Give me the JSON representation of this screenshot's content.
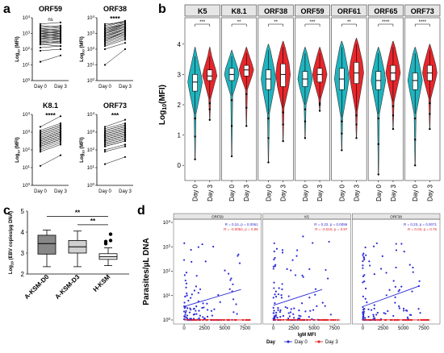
{
  "chart_data": [
    {
      "panel": "a",
      "type": "scatter",
      "style": "paired before-after",
      "ylabel": "Log10 (MFI)",
      "y_ticks": [
        "10^0",
        "10^1",
        "10^2",
        "10^3",
        "10^4"
      ],
      "categories": [
        "Day 0",
        "Day 3"
      ],
      "subplots": [
        {
          "title": "ORF59",
          "significance": "ns",
          "day0": [
            2.1,
            2.3,
            2.3,
            2.4,
            2.5,
            2.5,
            2.6,
            2.7,
            2.7,
            2.8,
            2.8,
            2.9,
            2.9,
            3.0,
            3.0,
            3.1,
            3.1,
            3.2,
            3.2,
            3.3,
            3.4,
            3.5,
            1.9,
            1.2,
            2.4,
            2.6,
            2.8,
            3.0,
            3.3,
            3.6
          ],
          "day3": [
            2.2,
            2.4,
            2.2,
            2.5,
            2.6,
            2.4,
            2.7,
            2.6,
            2.8,
            2.9,
            2.7,
            3.0,
            2.8,
            3.1,
            2.9,
            3.0,
            3.2,
            3.1,
            3.3,
            3.2,
            3.5,
            3.4,
            2.0,
            1.6,
            2.5,
            2.7,
            2.9,
            3.1,
            3.4,
            3.7
          ]
        },
        {
          "title": "ORF38",
          "significance": "****",
          "day0": [
            2.2,
            2.4,
            2.5,
            2.6,
            2.6,
            2.7,
            2.8,
            2.8,
            2.9,
            3.0,
            3.0,
            3.1,
            3.1,
            3.2,
            3.3,
            3.4,
            2.3,
            2.5,
            2.7,
            2.9,
            3.0,
            3.2,
            3.5,
            1.0,
            2.0,
            2.6,
            2.8,
            3.0,
            3.3,
            3.6
          ],
          "day3": [
            2.6,
            2.8,
            2.9,
            3.0,
            3.1,
            3.1,
            3.2,
            3.3,
            3.3,
            3.4,
            3.5,
            3.5,
            3.6,
            3.6,
            3.7,
            3.8,
            2.7,
            2.9,
            3.1,
            3.3,
            3.4,
            3.6,
            3.8,
            2.0,
            2.4,
            3.0,
            3.2,
            3.4,
            3.6,
            3.7
          ]
        },
        {
          "title": "K8.1",
          "significance": "****",
          "day0": [
            2.0,
            2.1,
            2.2,
            2.3,
            2.3,
            2.4,
            2.5,
            2.5,
            2.6,
            2.6,
            2.7,
            2.8,
            2.9,
            3.0,
            2.2,
            2.4,
            2.6,
            2.8,
            3.1,
            3.3,
            1.1,
            1.9,
            2.3,
            2.5,
            2.7,
            2.9,
            3.0,
            2.4,
            2.6,
            2.2
          ],
          "day3": [
            2.4,
            2.5,
            2.6,
            2.7,
            2.7,
            2.8,
            2.9,
            2.9,
            3.0,
            3.0,
            3.1,
            3.2,
            3.3,
            3.4,
            2.6,
            2.8,
            3.0,
            3.2,
            3.5,
            3.9,
            1.7,
            2.3,
            2.7,
            2.9,
            3.1,
            3.3,
            3.4,
            2.8,
            3.0,
            2.6
          ]
        },
        {
          "title": "ORF73",
          "significance": "***",
          "day0": [
            2.0,
            2.2,
            2.3,
            2.4,
            2.5,
            2.5,
            2.6,
            2.7,
            2.7,
            2.8,
            2.9,
            2.9,
            3.0,
            3.1,
            3.2,
            2.3,
            2.5,
            2.7,
            2.9,
            3.1,
            3.3,
            1.2,
            1.9,
            2.4,
            2.6,
            2.8,
            3.0,
            2.6,
            2.8,
            2.2
          ],
          "day3": [
            2.3,
            2.5,
            2.6,
            2.7,
            2.8,
            2.8,
            2.9,
            3.0,
            3.0,
            3.1,
            3.2,
            3.2,
            3.3,
            3.4,
            3.5,
            2.6,
            2.8,
            3.0,
            3.2,
            3.4,
            3.7,
            1.6,
            2.2,
            2.7,
            2.9,
            3.1,
            3.3,
            2.9,
            3.1,
            2.5
          ]
        }
      ]
    },
    {
      "panel": "b",
      "type": "violin",
      "ylabel": "Log10(MFI)",
      "ylim": [
        -0.5,
        4.5
      ],
      "y_ticks": [
        0,
        1,
        2,
        3,
        4
      ],
      "categories": [
        "Day 0",
        "Day 3"
      ],
      "colors": {
        "Day 0": "#1fb3be",
        "Day 3": "#e8262b"
      },
      "antigens": [
        {
          "name": "K5",
          "significance": "***",
          "day0": {
            "q1": 2.45,
            "median": 2.75,
            "q3": 3.0,
            "wlo": 1.7,
            "whi": 3.6,
            "min": 0.2,
            "max": 3.9
          },
          "day3": {
            "q1": 2.8,
            "median": 2.95,
            "q3": 3.15,
            "wlo": 2.2,
            "whi": 3.6,
            "min": 1.5,
            "max": 3.9
          }
        },
        {
          "name": "K8.1",
          "significance": "**",
          "day0": {
            "q1": 2.8,
            "median": 3.0,
            "q3": 3.2,
            "wlo": 2.3,
            "whi": 3.6,
            "min": 0.3,
            "max": 3.8
          },
          "day3": {
            "q1": 2.95,
            "median": 3.15,
            "q3": 3.3,
            "wlo": 2.5,
            "whi": 3.7,
            "min": 1.3,
            "max": 3.9
          }
        },
        {
          "name": "ORF38",
          "significance": "**",
          "day0": {
            "q1": 2.5,
            "median": 2.85,
            "q3": 3.15,
            "wlo": 1.7,
            "whi": 3.8,
            "min": 0.1,
            "max": 4.0
          },
          "day3": {
            "q1": 2.6,
            "median": 3.0,
            "q3": 3.35,
            "wlo": 1.9,
            "whi": 3.9,
            "min": 0.8,
            "max": 4.1
          }
        },
        {
          "name": "ORF59",
          "significance": "***",
          "day0": {
            "q1": 2.6,
            "median": 2.85,
            "q3": 3.1,
            "wlo": 2.0,
            "whi": 3.7,
            "min": 0.9,
            "max": 3.9
          },
          "day3": {
            "q1": 2.75,
            "median": 3.0,
            "q3": 3.2,
            "wlo": 2.2,
            "whi": 3.7,
            "min": 1.8,
            "max": 3.9
          }
        },
        {
          "name": "ORF61",
          "significance": "**",
          "day0": {
            "q1": 2.5,
            "median": 2.85,
            "q3": 3.2,
            "wlo": 1.6,
            "whi": 3.9,
            "min": 0.5,
            "max": 4.1
          },
          "day3": {
            "q1": 2.7,
            "median": 3.05,
            "q3": 3.4,
            "wlo": 1.8,
            "whi": 4.0,
            "min": 0.9,
            "max": 4.2
          }
        },
        {
          "name": "ORF65",
          "significance": "****",
          "day0": {
            "q1": 2.5,
            "median": 2.8,
            "q3": 3.1,
            "wlo": 1.7,
            "whi": 3.7,
            "min": -0.3,
            "max": 3.9
          },
          "day3": {
            "q1": 2.8,
            "median": 3.05,
            "q3": 3.3,
            "wlo": 2.1,
            "whi": 3.9,
            "min": 1.2,
            "max": 4.1
          }
        },
        {
          "name": "ORF73",
          "significance": "****",
          "day0": {
            "q1": 2.5,
            "median": 2.8,
            "q3": 3.05,
            "wlo": 1.7,
            "whi": 3.7,
            "min": 0.0,
            "max": 3.9
          },
          "day3": {
            "q1": 2.8,
            "median": 3.05,
            "q3": 3.3,
            "wlo": 2.2,
            "whi": 3.8,
            "min": 1.2,
            "max": 4.0
          }
        }
      ]
    },
    {
      "panel": "c",
      "type": "box",
      "ylabel": "Log10 (EBV copies/µg DNA)",
      "ylim": [
        2,
        5
      ],
      "y_ticks": [
        2,
        3,
        4,
        5
      ],
      "categories": [
        "A-KSM-D0",
        "A-KSM-D3",
        "H-KSM"
      ],
      "boxes": [
        {
          "q1": 2.95,
          "median": 3.45,
          "q3": 3.85,
          "min": 2.35,
          "max": 4.1,
          "fill": "#888888",
          "outliers": []
        },
        {
          "q1": 3.0,
          "median": 3.3,
          "q3": 3.6,
          "min": 2.35,
          "max": 4.05,
          "fill": "#d0d0d0",
          "outliers": []
        },
        {
          "q1": 2.7,
          "median": 2.82,
          "q3": 2.97,
          "min": 2.4,
          "max": 3.25,
          "fill": "#ffffff",
          "outliers": [
            3.45,
            3.6,
            3.55,
            3.9
          ]
        }
      ],
      "comparisons": [
        {
          "from": "A-KSM-D0",
          "to": "H-KSM",
          "label": "**"
        },
        {
          "from": "A-KSM-D3",
          "to": "H-KSM",
          "label": "**"
        }
      ]
    },
    {
      "panel": "d",
      "type": "scatter",
      "ylabel": "Parasites/µL DNA",
      "xlabel": "IgM MFI",
      "x_ticks": [
        0,
        2500,
        5000,
        7500
      ],
      "y_ticks": [
        "10^0",
        "10^1",
        "10^2",
        "10^3",
        "10^4"
      ],
      "legend": {
        "title": "Day",
        "entries": [
          "Day 0",
          "Day 3"
        ],
        "placement": "bottom"
      },
      "colors": {
        "Day 0": "#2a2ad6",
        "Day 3": "#e8262b"
      },
      "facets": [
        {
          "title": "ORF59",
          "stat_day0": "R = 0.24, p = 0.0061",
          "stat_day3": "R = -0.0052, p = 0.95",
          "fit_day0": [
            [
              0,
              0.55
            ],
            [
              7000,
              1.25
            ]
          ]
        },
        {
          "title": "K5",
          "stat_day0": "R = 0.22, p = 0.0096",
          "stat_day3": "R = -0.015, p = 0.87",
          "fit_day0": [
            [
              0,
              0.6
            ],
            [
              6000,
              1.25
            ]
          ]
        },
        {
          "title": "ORF38",
          "stat_day0": "R = 0.23, p = 0.0071",
          "stat_day3": "R = 0.03, p = 0.75",
          "fit_day0": [
            [
              0,
              0.55
            ],
            [
              7000,
              1.4
            ]
          ]
        }
      ]
    }
  ],
  "labels": {
    "panel_a": "a",
    "panel_b": "b",
    "panel_c": "c",
    "panel_d": "d"
  }
}
